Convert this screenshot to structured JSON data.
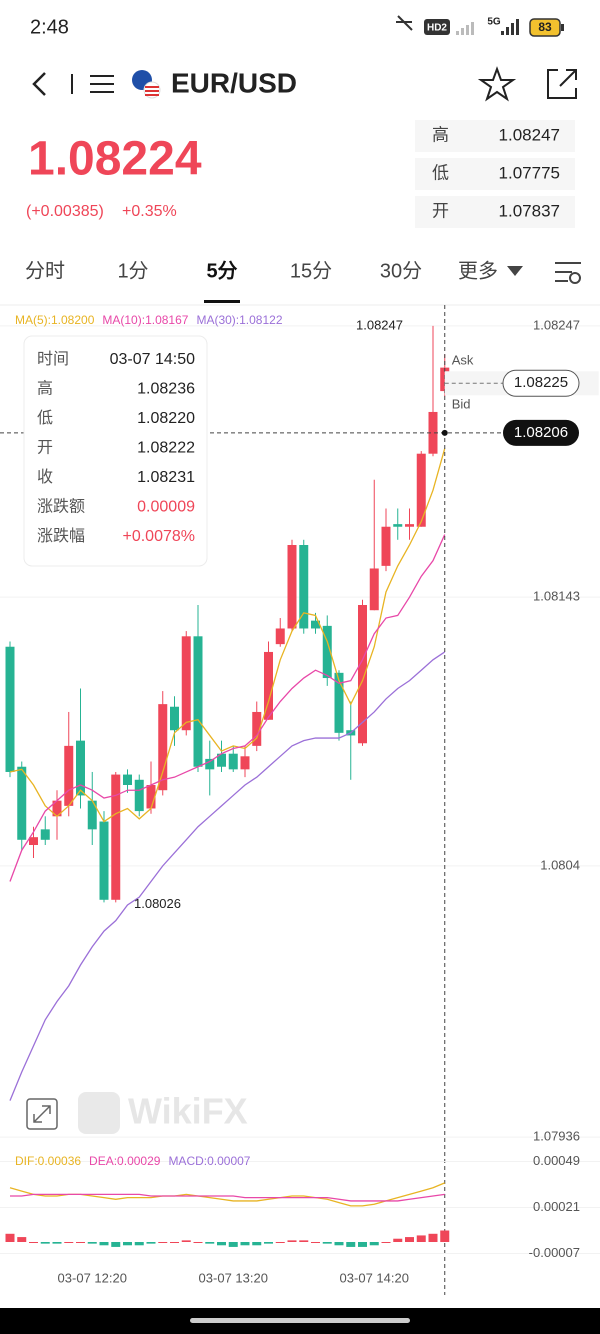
{
  "status_bar": {
    "time": "2:48",
    "network": "HD2",
    "signal": "5G",
    "battery": "83"
  },
  "header": {
    "symbol": "EUR/USD"
  },
  "quote": {
    "price": "1.08224",
    "change": "(+0.00385)",
    "change_pct": "+0.35%",
    "stats": [
      {
        "label": "高",
        "value": "1.08247"
      },
      {
        "label": "低",
        "value": "1.07775"
      },
      {
        "label": "开",
        "value": "1.07837"
      }
    ]
  },
  "tabs": {
    "items": [
      "分时",
      "1分",
      "5分",
      "15分",
      "30分",
      "更多"
    ],
    "active": 2
  },
  "watermark": "WikiFX",
  "tooltip": {
    "rows": [
      [
        "时间",
        "03-07 14:50"
      ],
      [
        "高",
        "1.08236"
      ],
      [
        "低",
        "1.08220"
      ],
      [
        "开",
        "1.08222"
      ],
      [
        "收",
        "1.08231"
      ],
      [
        "涨跌额",
        "0.00009"
      ],
      [
        "涨跌幅",
        "+0.0078%"
      ]
    ]
  },
  "chart_data": [
    {
      "type": "candlestick",
      "up_color": "#ef4658",
      "down_color": "#26b393",
      "categories": [
        null,
        null,
        null,
        null,
        null,
        null,
        null,
        "03-07 12:20",
        null,
        null,
        null,
        null,
        null,
        null,
        null,
        null,
        null,
        null,
        null,
        "03-07 13:20",
        null,
        null,
        null,
        null,
        null,
        null,
        null,
        null,
        null,
        null,
        null,
        "03-07 14:20",
        null,
        null,
        null,
        null,
        null,
        null
      ],
      "open": [
        1.08124,
        1.08078,
        1.08048,
        1.08054,
        1.08059,
        1.08063,
        1.08088,
        1.08065,
        1.08057,
        1.08027,
        1.08075,
        1.08073,
        1.08062,
        1.08069,
        1.08101,
        1.08092,
        1.08128,
        1.08081,
        1.08083,
        1.08083,
        1.08077,
        1.08086,
        1.08096,
        1.08125,
        1.08131,
        1.08163,
        1.08134,
        1.08132,
        1.08114,
        1.08092,
        1.08087,
        1.08138,
        1.08155,
        1.08171,
        1.0817,
        1.0817,
        1.08198,
        1.08222
      ],
      "high": [
        1.08126,
        1.0808,
        1.08055,
        1.08059,
        1.08069,
        1.08099,
        1.08108,
        1.08076,
        1.08061,
        1.08076,
        1.08077,
        1.08075,
        1.0808,
        1.08107,
        1.08105,
        1.0813,
        1.0814,
        1.08088,
        1.08088,
        1.08086,
        1.08086,
        1.08103,
        1.08126,
        1.08135,
        1.08165,
        1.08165,
        1.08137,
        1.08136,
        1.08115,
        1.08103,
        1.08142,
        1.08188,
        1.08177,
        1.08177,
        1.08177,
        1.08199,
        1.08247,
        1.08236
      ],
      "low": [
        1.08074,
        1.08046,
        1.08043,
        1.08048,
        1.0805,
        1.08059,
        1.08062,
        1.08048,
        1.08026,
        1.08026,
        1.08068,
        1.08059,
        1.0806,
        1.08067,
        1.08086,
        1.0809,
        1.08076,
        1.08067,
        1.08076,
        1.08076,
        1.08074,
        1.08084,
        1.08096,
        1.08124,
        1.0813,
        1.08129,
        1.08129,
        1.08109,
        1.08088,
        1.08073,
        1.08086,
        1.08138,
        1.08153,
        1.08165,
        1.08165,
        1.0817,
        1.08197,
        1.0822
      ],
      "close": [
        1.08076,
        1.0805,
        1.08051,
        1.0805,
        1.08065,
        1.08086,
        1.08067,
        1.08054,
        1.08027,
        1.08075,
        1.08071,
        1.08061,
        1.08071,
        1.08102,
        1.08092,
        1.08128,
        1.08078,
        1.08077,
        1.08078,
        1.08077,
        1.08082,
        1.08099,
        1.08122,
        1.08131,
        1.08163,
        1.08131,
        1.08131,
        1.08112,
        1.08091,
        1.0809,
        1.0814,
        1.08154,
        1.0817,
        1.0817,
        1.08171,
        1.08198,
        1.08214,
        1.08231
      ],
      "series": [
        {
          "name": "MA(5):1.08200",
          "color": "#e8b423",
          "values": [
            1.08076,
            1.08077,
            1.08071,
            1.08063,
            1.08059,
            1.08063,
            1.08069,
            1.08065,
            1.08057,
            1.0806,
            1.08062,
            1.08058,
            1.08062,
            1.08076,
            1.08091,
            1.08095,
            1.08096,
            1.0809,
            1.08084,
            1.08086,
            1.08085,
            1.08089,
            1.08103,
            1.08119,
            1.0813,
            1.08137,
            1.08136,
            1.08126,
            1.08111,
            1.08102,
            1.08111,
            1.08124,
            1.08145,
            1.08155,
            1.08163,
            1.08172,
            1.08184,
            1.082
          ]
        },
        {
          "name": "MA(10):1.08167",
          "color": "#e848a8",
          "values": [
            1.08034,
            1.08046,
            1.08053,
            1.08061,
            1.08065,
            1.08069,
            1.08071,
            1.08069,
            1.08066,
            1.08067,
            1.08069,
            1.08069,
            1.08071,
            1.08073,
            1.08074,
            1.08076,
            1.08078,
            1.0808,
            1.08083,
            1.08085,
            1.08086,
            1.0809,
            1.08097,
            1.08103,
            1.08108,
            1.08112,
            1.08115,
            1.08113,
            1.0811,
            1.08111,
            1.08119,
            1.08129,
            1.08135,
            1.08136,
            1.08143,
            1.08151,
            1.08157,
            1.08167
          ]
        },
        {
          "name": "MA(30):1.08122",
          "color": "#9b70d8",
          "values": [
            1.0795,
            1.07961,
            1.07971,
            1.07981,
            1.07988,
            1.07994,
            1.08002,
            1.08009,
            1.08015,
            1.08019,
            1.08025,
            1.08028,
            1.08034,
            1.0804,
            1.08045,
            1.0805,
            1.08055,
            1.08059,
            1.08063,
            1.08067,
            1.08071,
            1.08074,
            1.08078,
            1.08082,
            1.08086,
            1.08088,
            1.08089,
            1.08089,
            1.08089,
            1.08091,
            1.08095,
            1.08099,
            1.08104,
            1.08108,
            1.08111,
            1.08115,
            1.08119,
            1.08122
          ]
        }
      ],
      "ylim": [
        1.07933,
        1.08255
      ],
      "yticks": [
        1.07936,
        1.0804,
        1.08143,
        1.08247
      ],
      "max_label": "1.08247",
      "min_label": "1.08026",
      "ask": {
        "label": "Ask",
        "value": 1.08225
      },
      "bid": {
        "label": "Bid",
        "value": 1.08206
      }
    },
    {
      "type": "macd",
      "up_color": "#ef4658",
      "down_color": "#26b393",
      "series": [
        {
          "name": "DIF:0.00036",
          "color": "#e8b423",
          "values": [
            0.00033,
            0.00031,
            0.00029,
            0.00028,
            0.00028,
            0.00029,
            0.00029,
            0.00028,
            0.00027,
            0.00026,
            0.00027,
            0.00027,
            0.00027,
            0.00028,
            0.00028,
            0.00029,
            0.00028,
            0.00027,
            0.00026,
            0.00025,
            0.00025,
            0.00025,
            0.00026,
            0.00027,
            0.00028,
            0.00028,
            0.00027,
            0.00026,
            0.00024,
            0.00022,
            0.00022,
            0.00023,
            0.00025,
            0.00027,
            0.00029,
            0.00031,
            0.00033,
            0.00036
          ]
        },
        {
          "name": "DEA:0.00029",
          "color": "#e848a8",
          "values": [
            0.00028,
            0.00028,
            0.00029,
            0.00029,
            0.00029,
            0.00029,
            0.00029,
            0.00029,
            0.00029,
            0.00029,
            0.00029,
            0.00029,
            0.00028,
            0.00028,
            0.00028,
            0.00028,
            0.00028,
            0.00028,
            0.00028,
            0.00028,
            0.00027,
            0.00027,
            0.00027,
            0.00027,
            0.00027,
            0.00027,
            0.00027,
            0.00027,
            0.00026,
            0.00025,
            0.00025,
            0.00025,
            0.00025,
            0.00025,
            0.00026,
            0.00027,
            0.00028,
            0.00029
          ]
        },
        {
          "name": "MACD:0.00007",
          "color": "#9b70d8",
          "style": "bar",
          "values": [
            5e-05,
            3e-05,
            0,
            -1e-05,
            -1e-05,
            0,
            0,
            -1e-05,
            -2e-05,
            -3e-05,
            -2e-05,
            -2e-05,
            -1e-05,
            0,
            0,
            1e-05,
            0,
            -1e-05,
            -2e-05,
            -3e-05,
            -2e-05,
            -2e-05,
            -1e-05,
            0,
            1e-05,
            1e-05,
            0,
            -1e-05,
            -2e-05,
            -3e-05,
            -3e-05,
            -2e-05,
            0,
            2e-05,
            3e-05,
            4e-05,
            5e-05,
            7e-05
          ]
        }
      ],
      "ylim": [
        -0.00014,
        0.00056
      ],
      "yticks": [
        -7e-05,
        0.00021,
        0.00049
      ]
    }
  ]
}
